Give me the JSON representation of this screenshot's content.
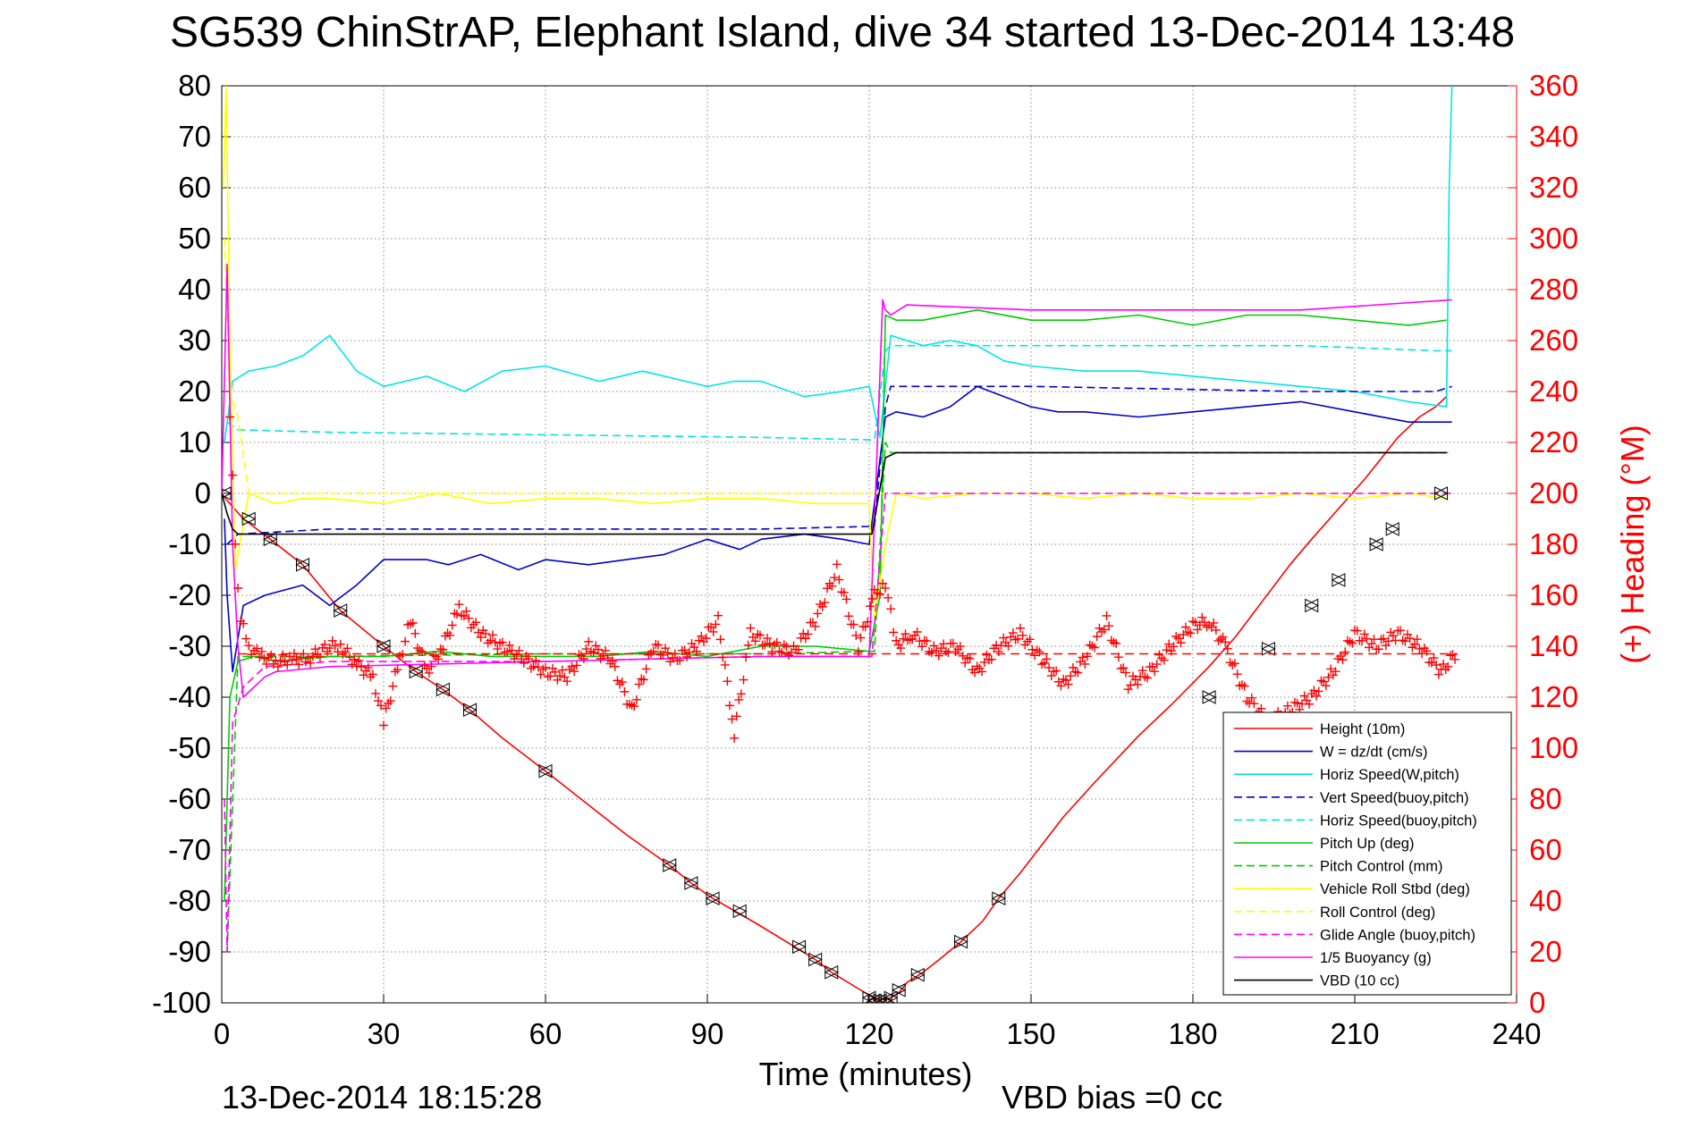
{
  "chart_data": {
    "type": "line",
    "title": "SG539 ChinStrAP, Elephant Island, dive 34 started 13-Dec-2014 13:48",
    "xlabel": "Time (minutes)",
    "ylabel": "",
    "ylabel_right": "(+) Heading (°M)",
    "xlim": [
      0,
      240
    ],
    "ylim": [
      -100,
      80
    ],
    "ylim_right": [
      0,
      360
    ],
    "xticks": [
      "0",
      "30",
      "60",
      "90",
      "120",
      "150",
      "180",
      "210",
      "240"
    ],
    "yticks": [
      "80",
      "70",
      "60",
      "50",
      "40",
      "30",
      "20",
      "10",
      "0",
      "-10",
      "-20",
      "-30",
      "-40",
      "-50",
      "-60",
      "-70",
      "-80",
      "-90",
      "-100"
    ],
    "yticks_right": [
      "360",
      "340",
      "320",
      "300",
      "280",
      "260",
      "240",
      "220",
      "200",
      "180",
      "160",
      "140",
      "120",
      "100",
      "80",
      "60",
      "40",
      "20",
      "0"
    ],
    "grid": true,
    "legend_position": "bottom-right",
    "footer_left": "13-Dec-2014 18:15:28",
    "footer_right": "VBD bias =0 cc",
    "heading_mean_right": 137,
    "series": [
      {
        "name": "Height (10m)",
        "color": "#ff0000",
        "style": "solid",
        "x": [
          0,
          0.3,
          1.5,
          4,
          9,
          15,
          22,
          30,
          36,
          41,
          46,
          52,
          60,
          75,
          83,
          87,
          91,
          96,
          100,
          107,
          110,
          113,
          120,
          121.5,
          122,
          124,
          125.5,
          127,
          130,
          133,
          137,
          141,
          144,
          148,
          152,
          156,
          162,
          170,
          176,
          183,
          188,
          193,
          198,
          202,
          207,
          212,
          215,
          218,
          222,
          225,
          227
        ],
        "y": [
          0,
          -0.5,
          -2,
          -5,
          -9,
          -14,
          -23,
          -30,
          -35,
          -38.5,
          -42.5,
          -48,
          -54.5,
          -67,
          -73,
          -76.5,
          -79.5,
          -82.5,
          -85,
          -89.5,
          -91.5,
          -94,
          -98.5,
          -99.5,
          -99.5,
          -99,
          -98,
          -96,
          -94,
          -91.5,
          -88,
          -84,
          -79.5,
          -74.5,
          -69,
          -63.5,
          -56.5,
          -47.5,
          -41.5,
          -34,
          -28,
          -21,
          -14,
          -9,
          -3,
          3,
          7,
          11,
          15,
          17,
          19
        ]
      },
      {
        "name": "W = dz/dt (cm/s)",
        "color": "#0000cc",
        "style": "solid",
        "x": [
          0.5,
          1,
          2,
          4,
          8,
          15,
          20,
          25,
          30,
          38,
          42,
          48,
          55,
          60,
          68,
          75,
          82,
          90,
          96,
          100,
          108,
          115,
          120,
          123,
          125,
          130,
          135,
          140,
          145,
          150,
          155,
          160,
          170,
          180,
          190,
          200,
          210,
          220,
          228
        ],
        "y": [
          -5,
          -20,
          -35,
          -22,
          -20,
          -18,
          -22,
          -18,
          -13,
          -13,
          -14,
          -12,
          -15,
          -13,
          -14,
          -13,
          -12,
          -9,
          -11,
          -9,
          -8,
          -9,
          -10,
          15,
          16,
          15,
          17,
          21,
          19,
          17,
          16,
          16,
          15,
          16,
          17,
          18,
          16,
          14,
          14
        ]
      },
      {
        "name": "Horiz Speed(W,pitch)",
        "color": "#00e5e5",
        "style": "solid",
        "x": [
          0.5,
          2,
          5,
          10,
          15,
          20,
          25,
          30,
          38,
          45,
          52,
          60,
          70,
          78,
          86,
          90,
          95,
          100,
          108,
          115,
          120,
          122,
          124,
          130,
          135,
          140,
          145,
          150,
          160,
          170,
          180,
          190,
          200,
          210,
          220,
          227,
          227.5,
          228
        ],
        "y": [
          10,
          22,
          24,
          25,
          27,
          31,
          24,
          21,
          23,
          20,
          24,
          25,
          22,
          24,
          22,
          21,
          22,
          22,
          19,
          20,
          21,
          11,
          31,
          29,
          30,
          29,
          26,
          25,
          24,
          24,
          23,
          22,
          21,
          20,
          18,
          17,
          60,
          80
        ]
      },
      {
        "name": "Vert Speed(buoy,pitch)",
        "color": "#0000cc",
        "style": "dashed",
        "x": [
          1,
          3,
          20,
          60,
          100,
          120,
          121,
          123,
          124,
          150,
          200,
          225,
          228
        ],
        "y": [
          -10,
          -8,
          -7,
          -7,
          -7,
          -6.5,
          -6.5,
          17,
          21,
          21,
          20,
          20,
          21
        ]
      },
      {
        "name": "Horiz Speed(buoy,pitch)",
        "color": "#00e5e5",
        "style": "dashed",
        "x": [
          1,
          3,
          20,
          60,
          100,
          120,
          121,
          123,
          124,
          150,
          200,
          225,
          228
        ],
        "y": [
          14,
          12.5,
          12,
          11.5,
          11,
          10.5,
          10.5,
          28,
          29,
          29,
          29,
          28,
          28
        ]
      },
      {
        "name": "Pitch Up (deg)",
        "color": "#00cc00",
        "style": "solid",
        "x": [
          0.5,
          1.5,
          3,
          6,
          10,
          20,
          30,
          40,
          50,
          60,
          70,
          80,
          90,
          100,
          110,
          120,
          122,
          123,
          125,
          130,
          140,
          150,
          160,
          170,
          180,
          190,
          200,
          210,
          220,
          227
        ],
        "y": [
          -80,
          -40,
          -33,
          -32,
          -33,
          -32,
          -32,
          -31,
          -32,
          -32,
          -32,
          -31,
          -32,
          -30,
          -30,
          -31,
          -20,
          35,
          34,
          34,
          36,
          34,
          34,
          35,
          33,
          35,
          35,
          34,
          33,
          34
        ]
      },
      {
        "name": "Pitch Control (mm)",
        "color": "#00cc00",
        "style": "dashed",
        "x": [
          1,
          3,
          20,
          60,
          100,
          120,
          121,
          123,
          124,
          150,
          200,
          225,
          228
        ],
        "y": [
          -90,
          -32,
          -32,
          -31.5,
          -31.5,
          -31,
          -31,
          10,
          8,
          8,
          8,
          8,
          8
        ]
      },
      {
        "name": "Vehicle Roll Stbd (deg)",
        "color": "#ffff00",
        "style": "solid",
        "x": [
          0.3,
          0.8,
          1.5,
          2.5,
          5,
          10,
          15,
          20,
          30,
          40,
          50,
          60,
          70,
          80,
          90,
          100,
          110,
          120,
          121,
          123,
          125,
          130,
          140,
          150,
          160,
          170,
          180,
          190,
          200,
          210,
          220,
          227
        ],
        "y": [
          60,
          80,
          30,
          -15,
          0,
          -2,
          -1,
          -1,
          -2,
          0,
          -2,
          -1,
          -1,
          -2,
          -1,
          -1,
          -2,
          -2,
          -25,
          -10,
          0,
          -1,
          0,
          0,
          -1,
          0,
          -1,
          -1,
          0,
          -1,
          0,
          -1
        ]
      },
      {
        "name": "Roll Control (deg)",
        "color": "#ffff00",
        "style": "dashed",
        "x": [
          0.5,
          1.5,
          3,
          5,
          228
        ],
        "y": [
          50,
          20,
          15,
          0,
          0
        ]
      },
      {
        "name": "Glide Angle (buoy,pitch)",
        "color": "#ff00ff",
        "style": "dashed",
        "x": [
          0.5,
          1,
          2,
          4,
          8,
          20,
          60,
          100,
          120,
          120.5,
          123,
          124,
          228
        ],
        "y": [
          -60,
          -90,
          -45,
          -38,
          -34,
          -33,
          -33,
          -32,
          -32,
          -32,
          0,
          0,
          0
        ]
      },
      {
        "name": "1/5 Buoyancy (g)",
        "color": "#ff00ff",
        "style": "solid",
        "x": [
          0,
          1,
          2,
          3,
          4,
          6,
          8,
          10,
          20,
          60,
          100,
          120,
          121,
          122.5,
          123,
          124,
          127,
          150,
          200,
          228
        ],
        "y": [
          0,
          45,
          -10,
          -30,
          -40,
          -38,
          -36,
          -35,
          -34,
          -33,
          -32,
          -32,
          -5,
          38,
          36,
          35,
          37,
          36,
          36,
          38
        ]
      },
      {
        "name": "VBD (10 cc)",
        "color": "#000000",
        "style": "solid",
        "x": [
          0,
          1,
          2,
          3,
          20,
          60,
          100,
          120,
          120.5,
          123,
          125,
          150,
          200,
          227
        ],
        "y": [
          0,
          -4,
          -7,
          -8,
          -8,
          -8,
          -8,
          -8,
          -8,
          7,
          8,
          8,
          8,
          8
        ]
      }
    ],
    "height_markers": {
      "x": [
        0.5,
        5,
        9,
        15,
        22,
        30,
        36,
        41,
        46,
        60,
        83,
        87,
        91,
        96,
        107,
        110,
        113,
        120,
        121,
        122,
        123,
        124,
        125.5,
        129,
        137,
        144,
        183,
        194,
        202,
        207,
        214,
        217,
        226
      ],
      "y": [
        0,
        -5,
        -9,
        -14,
        -23,
        -30,
        -35,
        -38.5,
        -42.5,
        -54.5,
        -73,
        -76.5,
        -79.5,
        -82,
        -89,
        -91.5,
        -94,
        -99,
        -99.5,
        -99.5,
        -99.5,
        -99,
        -97.5,
        -94.5,
        -88,
        -79.5,
        -40,
        -30.5,
        -22,
        -17,
        -10,
        -7,
        0
      ]
    },
    "heading": {
      "name": "Heading",
      "color": "#ff0000",
      "marker": "+",
      "x": [
        1.5,
        2.5,
        3.5,
        5,
        7,
        10,
        13,
        16,
        20,
        22,
        25,
        28,
        30,
        33,
        35,
        38,
        41,
        44,
        48,
        52,
        56,
        60,
        64,
        68,
        72,
        76,
        80,
        84,
        88,
        92,
        95,
        98,
        102,
        106,
        110,
        114,
        118,
        121,
        123,
        125,
        128,
        132,
        136,
        140,
        144,
        148,
        152,
        156,
        160,
        164,
        168,
        172,
        176,
        180,
        183,
        186,
        190,
        194,
        198,
        202,
        206,
        210,
        214,
        218,
        222,
        226,
        229
      ],
      "y": [
        230,
        180,
        150,
        140,
        136,
        134,
        135,
        135,
        140,
        140,
        133,
        128,
        110,
        135,
        150,
        130,
        140,
        155,
        145,
        140,
        135,
        130,
        128,
        140,
        135,
        115,
        140,
        135,
        140,
        150,
        106,
        145,
        140,
        138,
        150,
        170,
        140,
        160,
        165,
        140,
        145,
        138,
        140,
        130,
        140,
        145,
        135,
        125,
        135,
        150,
        125,
        130,
        140,
        148,
        150,
        140,
        120,
        110,
        115,
        120,
        130,
        145,
        140,
        145,
        140,
        130,
        138
      ]
    }
  }
}
